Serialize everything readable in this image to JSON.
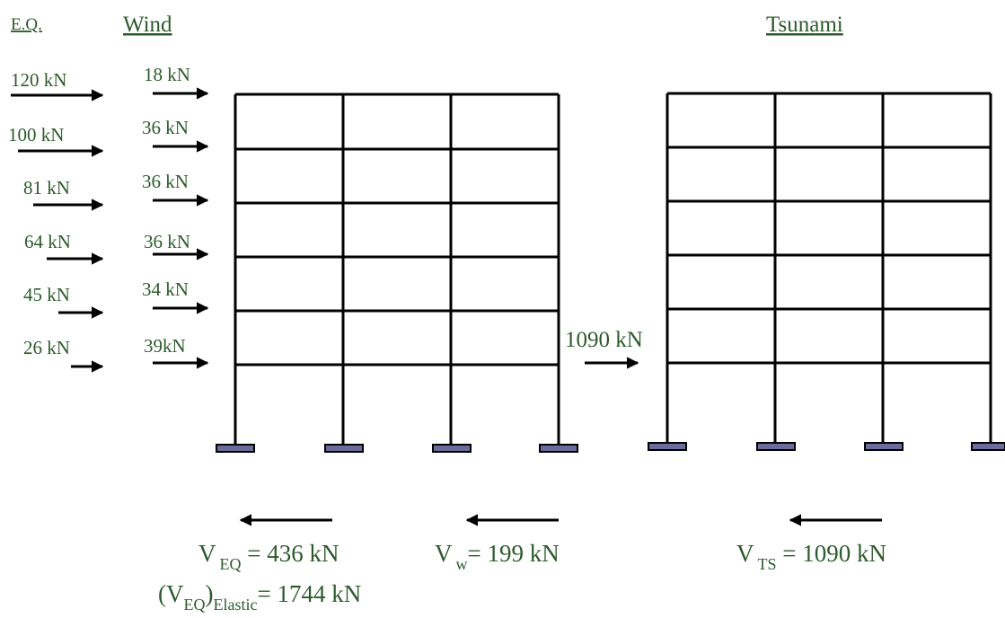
{
  "colors": {
    "label_green": "#2d5a2d",
    "frame": "#000000",
    "support_fill": "#6b6b9e",
    "support_stroke": "#000000"
  },
  "headings": {
    "eq": "E.Q.",
    "wind": "Wind",
    "tsunami": "Tsunami"
  },
  "eq_loads": [
    "120 kN",
    "100 kN",
    "81 kN",
    "64 kN",
    "45 kN",
    "26 kN"
  ],
  "wind_loads": [
    "18 kN",
    "36 kN",
    "36 kN",
    "36 kN",
    "34 kN",
    "39kN"
  ],
  "tsunami_load": "1090 kN",
  "base_shear": {
    "eq": {
      "v": "V",
      "sub": "EQ",
      "rest": " = 436 kN"
    },
    "wind": {
      "v": "V",
      "sub": "w",
      "rest": "= 199 kN"
    },
    "tsunami": {
      "v": "V",
      "sub": "TS",
      "rest": " = 1090 kN"
    },
    "eq_elastic": {
      "open": "(V",
      "sub1": "EQ",
      "close": ")",
      "sub2": "Elastic",
      "rest": "= 1744 kN"
    }
  }
}
